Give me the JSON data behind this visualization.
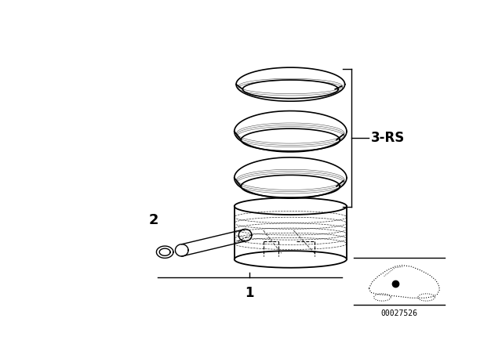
{
  "bg_color": "#ffffff",
  "line_color": "#000000",
  "label_3rs": "3-RS",
  "label_1": "1",
  "label_2": "2",
  "part_number": "00027526",
  "fig_width": 6.4,
  "fig_height": 4.48,
  "dpi": 100
}
